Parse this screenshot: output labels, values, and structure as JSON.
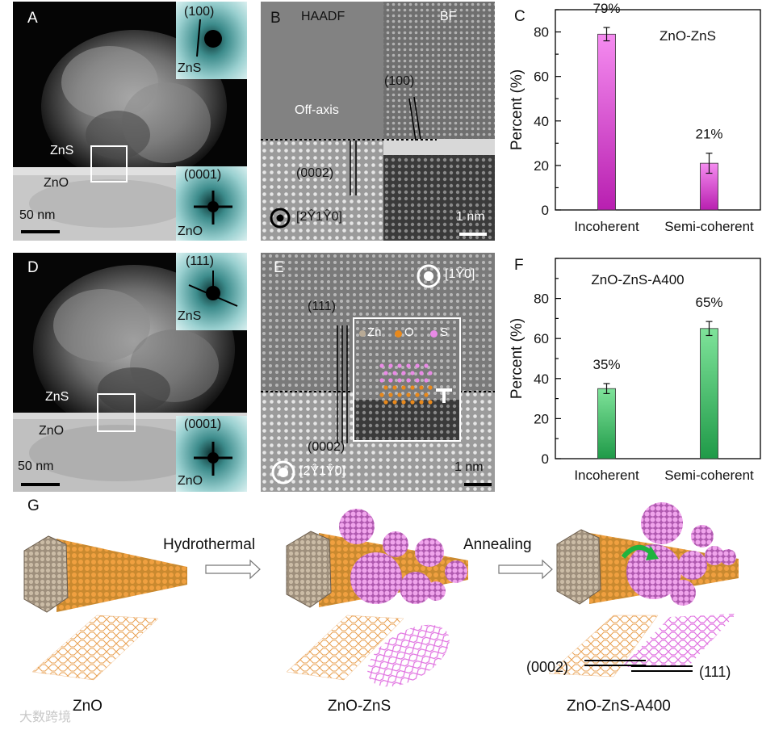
{
  "panels": {
    "a": {
      "letter": "A",
      "fft_top_label": "(100)",
      "fft_top_material": "ZnS",
      "fft_bottom_label": "(0001)",
      "fft_bottom_material": "ZnO",
      "zns_label": "ZnS",
      "zno_label": "ZnO",
      "scale_label": "50 nm"
    },
    "b": {
      "letter": "B",
      "haadf_label": "HAADF",
      "bf_label": "BF",
      "plane_top": "(100)",
      "offaxis_label": "Off-axis",
      "plane_bottom": "(0002)",
      "zone_axis": "[2Ŷ1Ŷ0]",
      "scale_label": "1 nm"
    },
    "d": {
      "letter": "D",
      "fft_top_label": "(111)",
      "fft_top_material": "ZnS",
      "fft_bottom_label": "(0001)",
      "fft_bottom_material": "ZnO",
      "zns_label": "ZnS",
      "zno_label": "ZnO",
      "scale_label": "50 nm"
    },
    "e": {
      "letter": "E",
      "zone_axis_top": "[1Ŷ0]",
      "plane_top": "(111)",
      "plane_bottom": "(0002)",
      "zone_axis_bottom": "[2Ŷ1Ŷ0]",
      "scale_label": "1 nm",
      "legend_zn": "Zn",
      "legend_o": "O",
      "legend_s": "S",
      "dislocation_symbol": "T"
    },
    "g": {
      "letter": "G",
      "step1": "Hydrothermal",
      "step2": "Annealing",
      "caption1": "ZnO",
      "caption2": "ZnO-ZnS",
      "caption3": "ZnO-ZnS-A400",
      "plane_left": "(0002)",
      "plane_right": "(111)",
      "watermark": "大数跨境"
    }
  },
  "chart_data": [
    {
      "panel": "C",
      "type": "bar",
      "title": "ZnO-ZnS",
      "categories": [
        "Incoherent",
        "Semi-coherent"
      ],
      "values": [
        79,
        21
      ],
      "errors": [
        3,
        4.5
      ],
      "data_labels": [
        "79%",
        "21%"
      ],
      "xlabel": "",
      "ylabel": "Percent  (%)",
      "ylim": [
        0,
        90
      ],
      "yticks": [
        0,
        20,
        40,
        60,
        80
      ],
      "bar_color_top": "#f58cf0",
      "bar_color_bottom": "#b81fb0"
    },
    {
      "panel": "F",
      "type": "bar",
      "title": "ZnO-ZnS-A400",
      "categories": [
        "Incoherent",
        "Semi-coherent"
      ],
      "values": [
        35,
        65
      ],
      "errors": [
        2.5,
        3.5
      ],
      "data_labels": [
        "35%",
        "65%"
      ],
      "xlabel": "",
      "ylabel": "Percent  (%)",
      "ylim": [
        0,
        100
      ],
      "yticks": [
        0,
        20,
        40,
        60,
        80
      ],
      "bar_color_top": "#7fe39a",
      "bar_color_bottom": "#1f9a48"
    }
  ],
  "colors": {
    "zn_atom": "#b8aa96",
    "o_atom": "#e8891c",
    "s_atom": "#e98ae6",
    "fft_teal": "#6fb8b8"
  }
}
